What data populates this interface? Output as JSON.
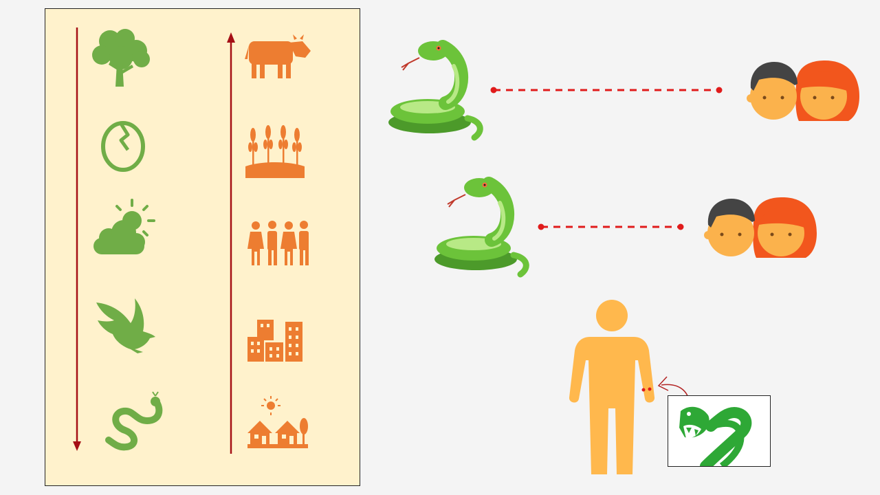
{
  "colors": {
    "panel_bg": "#fff2cc",
    "nature_green": "#70ad47",
    "human_orange": "#ed7d31",
    "arrow_red": "#a50f15",
    "link_red": "#e01b1b",
    "snake_green": "#6cc33a",
    "snake_light": "#b8e986",
    "skin": "#fbb24c",
    "hair_dark": "#444444",
    "hair_orange": "#f2561d",
    "person": "#ffb84d",
    "bite_snake": "#2ea836"
  },
  "left_panel": {
    "nature_column": {
      "arrow": "down",
      "icons": [
        "tree-icon",
        "egg-icon",
        "sun-cloud-icon",
        "eagle-icon",
        "snake-icon"
      ]
    },
    "human_column": {
      "arrow": "up",
      "icons": [
        "cow-icon",
        "wheat-field-icon",
        "people-group-icon",
        "city-buildings-icon",
        "village-houses-icon"
      ]
    }
  },
  "relations": [
    {
      "from": "snake-emoji",
      "to": "couple-icon",
      "line": "dashed"
    },
    {
      "from": "snake-emoji",
      "to": "couple-icon",
      "line": "dashed"
    }
  ],
  "bite": {
    "figure": "person-icon",
    "attacker": "striking-snake-icon",
    "marks": 2
  }
}
